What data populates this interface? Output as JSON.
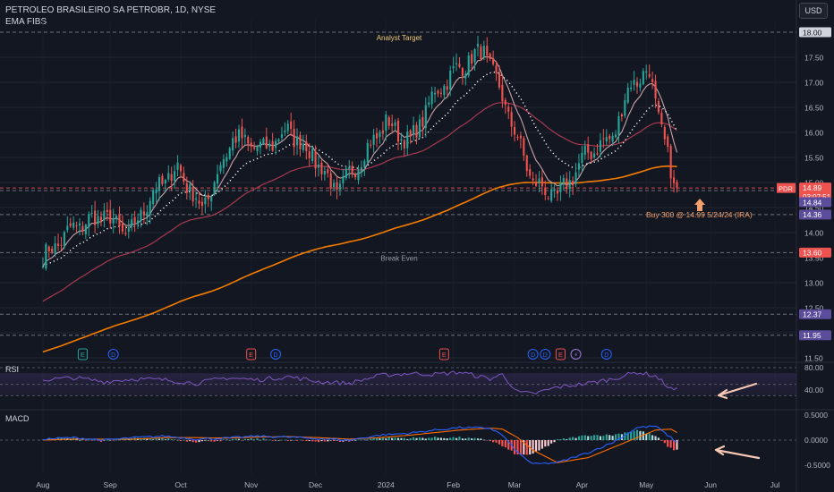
{
  "header": {
    "title": "PETROLEO BRASILEIRO SA PETROBR, 1D, NYSE",
    "indicator": "EMA FIBS",
    "currency_button": "USD"
  },
  "colors": {
    "background": "#131722",
    "bull": "#26a69a",
    "bear": "#ef5350",
    "ema_slow": "#f57c00",
    "ema_mid": "#a83a4f",
    "ema_fast": "#c9a3a8",
    "dots": "#ffffff",
    "rsi": "#7e57c2",
    "macd": "#2962ff",
    "signal": "#ff6d00",
    "annotation": "#f5a06a"
  },
  "chart_data": [
    {
      "type": "candlestick",
      "name": "price",
      "ylim": [
        11.5,
        18.3
      ],
      "y_ticks": [
        "17.50",
        "17.00",
        "16.50",
        "16.00",
        "15.50",
        "15.00",
        "14.50",
        "14.00",
        "13.50",
        "13.00",
        "12.50",
        "12.00",
        "11.50"
      ],
      "x_ticks": [
        "Aug",
        "Sep",
        "Oct",
        "Nov",
        "Dec",
        "2024",
        "Feb",
        "Mar",
        "Apr",
        "May",
        "Jun",
        "Jul"
      ],
      "anchors": {
        "t": [
          0,
          10,
          20,
          28,
          36,
          44,
          52,
          62,
          72,
          80,
          88,
          96,
          104,
          112,
          120,
          128,
          136,
          144,
          150,
          160,
          168,
          178,
          186,
          192,
          198,
          206,
          214,
          222
        ],
        "close": [
          13.5,
          14.1,
          14.35,
          13.95,
          14.8,
          15.3,
          14.45,
          15.9,
          15.65,
          16.05,
          15.55,
          14.8,
          15.5,
          16.2,
          15.8,
          16.8,
          17.3,
          17.65,
          16.7,
          15.0,
          14.7,
          15.6,
          15.9,
          17.0,
          17.2,
          14.9,
          15.0,
          15.0
        ]
      },
      "last_index": 207,
      "levels": [
        {
          "value": 18.0,
          "label": "18.00",
          "text": "Analyst Target"
        },
        {
          "value": 14.89,
          "label": "PDR",
          "text": "14.89",
          "countdown": "03:07:51"
        },
        {
          "value": 14.84,
          "label": "14.84"
        },
        {
          "value": 14.36,
          "label": "14.36"
        },
        {
          "value": 13.6,
          "label": "13.60",
          "text": "Break Even"
        },
        {
          "value": 12.37,
          "label": "12.37"
        },
        {
          "value": 11.95,
          "label": "11.95"
        }
      ],
      "annotation": "Buy 300 @ 14.99 5/24/24 (IRA)",
      "events": [
        {
          "t": 13,
          "label": "E",
          "kind": "earnings-past"
        },
        {
          "t": 23,
          "label": "D",
          "kind": "dividend"
        },
        {
          "t": 68,
          "label": "E",
          "kind": "earnings-past"
        },
        {
          "t": 76,
          "label": "D",
          "kind": "dividend"
        },
        {
          "t": 131,
          "label": "E",
          "kind": "earnings-past"
        },
        {
          "t": 160,
          "label": "D",
          "kind": "dividend"
        },
        {
          "t": 164,
          "label": "D",
          "kind": "dividend"
        },
        {
          "t": 169,
          "label": "E",
          "kind": "earnings-upcoming"
        },
        {
          "t": 174,
          "label": "⚡",
          "kind": "split"
        },
        {
          "t": 184,
          "label": "D",
          "kind": "dividend"
        }
      ]
    },
    {
      "type": "line",
      "name": "RSI",
      "title": "RSI",
      "ylim": [
        30,
        85
      ],
      "y_ticks": [
        "80.00",
        "40.00"
      ],
      "anchors": {
        "t": [
          0,
          10,
          20,
          30,
          40,
          50,
          60,
          70,
          80,
          90,
          100,
          110,
          120,
          128,
          136,
          146,
          150,
          155,
          160,
          168,
          178,
          186,
          194,
          200,
          205,
          210,
          216,
          222
        ],
        "v": [
          58,
          62,
          55,
          60,
          58,
          52,
          62,
          58,
          64,
          55,
          52,
          66,
          70,
          68,
          72,
          60,
          68,
          36,
          33,
          45,
          52,
          60,
          72,
          65,
          42,
          37,
          35,
          35
        ]
      }
    },
    {
      "type": "bar+line",
      "name": "MACD",
      "title": "MACD",
      "ylim": [
        -0.65,
        0.72
      ],
      "y_ticks": [
        "0.5000",
        "0.0000",
        "-0.5000"
      ],
      "anchors": {
        "t": [
          0,
          10,
          20,
          30,
          40,
          50,
          60,
          70,
          80,
          90,
          100,
          110,
          120,
          128,
          136,
          146,
          150,
          155,
          160,
          168,
          178,
          186,
          194,
          200,
          205,
          210,
          216,
          222
        ],
        "macd": [
          0.02,
          0.05,
          0.0,
          0.05,
          0.08,
          0.02,
          0.04,
          0.08,
          0.06,
          0.03,
          0.0,
          0.1,
          0.14,
          0.2,
          0.25,
          0.24,
          0.1,
          -0.25,
          -0.48,
          -0.45,
          -0.25,
          -0.05,
          0.25,
          0.28,
          0.05,
          -0.2,
          -0.45,
          -0.45
        ],
        "signal": [
          0.0,
          0.02,
          0.02,
          0.02,
          0.05,
          0.05,
          0.04,
          0.06,
          0.07,
          0.05,
          0.02,
          0.05,
          0.1,
          0.15,
          0.2,
          0.24,
          0.22,
          0.05,
          -0.2,
          -0.45,
          -0.35,
          -0.15,
          0.05,
          0.2,
          0.22,
          0.05,
          -0.2,
          -0.2
        ]
      }
    }
  ]
}
